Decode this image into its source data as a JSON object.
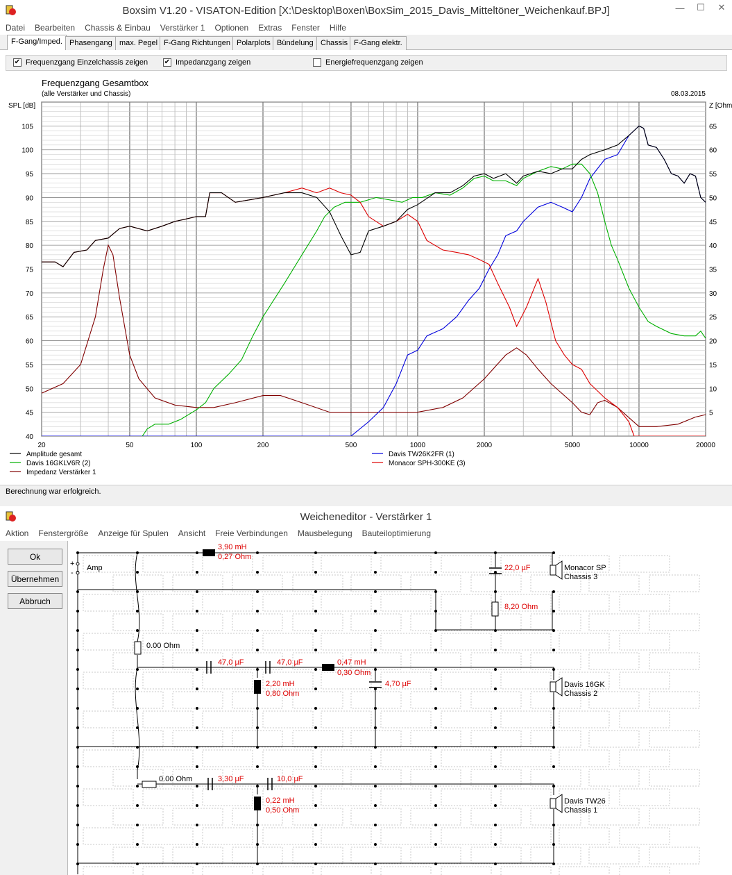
{
  "main_window": {
    "title": "Boxsim V1.20 - VISATON-Edition [X:\\Desktop\\Boxen\\BoxSim_2015_Davis_Mitteltöner_Weichenkauf.BPJ]",
    "menu": [
      "Datei",
      "Bearbeiten",
      "Chassis & Einbau",
      "Verstärker 1",
      "Optionen",
      "Extras",
      "Fenster",
      "Hilfe"
    ],
    "tabs": [
      "F-Gang/Imped.",
      "Phasengang",
      "max. Pegel",
      "F-Gang Richtungen",
      "Polarplots",
      "Bündelung",
      "Chassis",
      "F-Gang elektr."
    ],
    "active_tab": 0,
    "options": [
      {
        "label": "Frequenzgang Einzelchassis zeigen",
        "checked": true
      },
      {
        "label": "Impedanzgang zeigen",
        "checked": true
      },
      {
        "label": "Energiefrequenzgang zeigen",
        "checked": false
      }
    ],
    "status": "Berechnung war erfolgreich."
  },
  "chart_data": {
    "type": "line",
    "title": "Frequenzgang Gesamtbox",
    "subtitle": "(alle Verstärker und Chassis)",
    "date": "08.03.2015",
    "ylabel": "SPL [dB]",
    "ylabel_right": "Z [Ohm]",
    "xscale": "log",
    "xlim": [
      20,
      20000
    ],
    "ylim": [
      40,
      110
    ],
    "ylim_right": [
      0,
      70
    ],
    "x_ticks": [
      "20",
      "50",
      "100",
      "200",
      "500",
      "1000",
      "2000",
      "5000",
      "10000",
      "20000"
    ],
    "x_tick_values": [
      20,
      50,
      100,
      200,
      500,
      1000,
      2000,
      5000,
      10000,
      20000
    ],
    "y_ticks": [
      40,
      45,
      50,
      55,
      60,
      65,
      70,
      75,
      80,
      85,
      90,
      95,
      100,
      105
    ],
    "y_ticks_right": [
      "",
      "5",
      "10",
      "15",
      "20",
      "25",
      "30",
      "35",
      "40",
      "45",
      "50",
      "55",
      "60",
      "65"
    ],
    "grid": true,
    "legend": [
      {
        "name": "Amplitude gesamt",
        "color": "#000000",
        "column": 0
      },
      {
        "name": "Davis 16GKLV6R (2)",
        "color": "#00b000",
        "column": 0
      },
      {
        "name": "Impedanz Verstärker 1",
        "color": "#800000",
        "column": 0
      },
      {
        "name": "Davis TW26K2FR  (1)",
        "color": "#0000dd",
        "column": 1
      },
      {
        "name": "Monacor SPH-300KE (3)",
        "color": "#dd0000",
        "column": 1
      }
    ],
    "series": [
      {
        "name": "Amplitude gesamt",
        "color": "#000000",
        "axis": "left",
        "points": [
          [
            20,
            76.5
          ],
          [
            23,
            76.5
          ],
          [
            25,
            75.5
          ],
          [
            28,
            78.5
          ],
          [
            32,
            79
          ],
          [
            35,
            81
          ],
          [
            40,
            81.5
          ],
          [
            45,
            83.5
          ],
          [
            50,
            84
          ],
          [
            60,
            83
          ],
          [
            70,
            84
          ],
          [
            80,
            85
          ],
          [
            90,
            85.5
          ],
          [
            100,
            86
          ],
          [
            110,
            86
          ],
          [
            115,
            91
          ],
          [
            130,
            91
          ],
          [
            150,
            89
          ],
          [
            200,
            90
          ],
          [
            250,
            91
          ],
          [
            300,
            91
          ],
          [
            350,
            90
          ],
          [
            400,
            87
          ],
          [
            450,
            82
          ],
          [
            500,
            78
          ],
          [
            550,
            78.5
          ],
          [
            600,
            83
          ],
          [
            700,
            84
          ],
          [
            800,
            85
          ],
          [
            900,
            87.5
          ],
          [
            1000,
            88.5
          ],
          [
            1200,
            91
          ],
          [
            1400,
            91
          ],
          [
            1600,
            92.5
          ],
          [
            1800,
            94.5
          ],
          [
            2000,
            95
          ],
          [
            2200,
            94
          ],
          [
            2500,
            95
          ],
          [
            2800,
            93
          ],
          [
            3000,
            94.5
          ],
          [
            3500,
            95.5
          ],
          [
            4000,
            95
          ],
          [
            4500,
            96
          ],
          [
            5000,
            96
          ],
          [
            5500,
            98
          ],
          [
            6000,
            99
          ],
          [
            7000,
            100
          ],
          [
            8000,
            101
          ],
          [
            9000,
            103
          ],
          [
            10000,
            105
          ],
          [
            10500,
            104.5
          ],
          [
            11000,
            101
          ],
          [
            12000,
            100.5
          ],
          [
            13000,
            98
          ],
          [
            14000,
            95
          ],
          [
            15000,
            94.5
          ],
          [
            16000,
            93
          ],
          [
            17000,
            95
          ],
          [
            18000,
            94.5
          ],
          [
            19000,
            90
          ],
          [
            20000,
            89
          ]
        ]
      },
      {
        "name": "Davis TW26K2FR  (1)",
        "color": "#0000dd",
        "axis": "left",
        "points": [
          [
            20,
            40
          ],
          [
            500,
            40
          ],
          [
            600,
            43
          ],
          [
            700,
            46
          ],
          [
            800,
            51
          ],
          [
            900,
            57
          ],
          [
            1000,
            58
          ],
          [
            1100,
            61
          ],
          [
            1300,
            62.5
          ],
          [
            1500,
            65
          ],
          [
            1700,
            68.5
          ],
          [
            1900,
            71
          ],
          [
            2100,
            75
          ],
          [
            2300,
            78
          ],
          [
            2500,
            82
          ],
          [
            2800,
            83
          ],
          [
            3000,
            85
          ],
          [
            3500,
            88
          ],
          [
            4000,
            89
          ],
          [
            4500,
            88
          ],
          [
            5000,
            87
          ],
          [
            5500,
            90
          ],
          [
            6000,
            94
          ],
          [
            7000,
            98
          ],
          [
            8000,
            99
          ],
          [
            9000,
            103
          ],
          [
            10000,
            105
          ],
          [
            10500,
            104.5
          ],
          [
            11000,
            101
          ],
          [
            12000,
            100.5
          ],
          [
            13000,
            98
          ],
          [
            14000,
            95
          ],
          [
            15000,
            94.5
          ],
          [
            16000,
            93
          ],
          [
            17000,
            95
          ],
          [
            18000,
            94.5
          ],
          [
            19000,
            90
          ],
          [
            20000,
            89
          ]
        ]
      },
      {
        "name": "Davis 16GKLV6R (2)",
        "color": "#00b000",
        "axis": "left",
        "points": [
          [
            57,
            40
          ],
          [
            60,
            41.5
          ],
          [
            65,
            42.5
          ],
          [
            75,
            42.5
          ],
          [
            85,
            43.5
          ],
          [
            100,
            45.5
          ],
          [
            110,
            47
          ],
          [
            120,
            50
          ],
          [
            140,
            53
          ],
          [
            160,
            56
          ],
          [
            180,
            61
          ],
          [
            200,
            65
          ],
          [
            250,
            72
          ],
          [
            300,
            78
          ],
          [
            350,
            83
          ],
          [
            380,
            86
          ],
          [
            420,
            88
          ],
          [
            470,
            89
          ],
          [
            550,
            89
          ],
          [
            650,
            90
          ],
          [
            750,
            89.5
          ],
          [
            850,
            89
          ],
          [
            950,
            90
          ],
          [
            1050,
            90
          ],
          [
            1200,
            91
          ],
          [
            1400,
            90.5
          ],
          [
            1600,
            92
          ],
          [
            1800,
            94
          ],
          [
            2000,
            94.5
          ],
          [
            2200,
            93.5
          ],
          [
            2500,
            93.5
          ],
          [
            2800,
            92.5
          ],
          [
            3000,
            94
          ],
          [
            3500,
            95.5
          ],
          [
            4000,
            96.5
          ],
          [
            4500,
            96
          ],
          [
            5000,
            97
          ],
          [
            5500,
            97
          ],
          [
            6000,
            95
          ],
          [
            6500,
            91
          ],
          [
            7000,
            85
          ],
          [
            7500,
            80
          ],
          [
            8000,
            77
          ],
          [
            9000,
            71
          ],
          [
            10000,
            67
          ],
          [
            11000,
            64
          ],
          [
            12000,
            63
          ],
          [
            14000,
            61.5
          ],
          [
            16000,
            61
          ],
          [
            18000,
            61
          ],
          [
            19000,
            62
          ],
          [
            20000,
            60.5
          ]
        ]
      },
      {
        "name": "Monacor SPH-300KE (3)",
        "color": "#dd0000",
        "axis": "left",
        "points": [
          [
            20,
            76.5
          ],
          [
            23,
            76.5
          ],
          [
            25,
            75.5
          ],
          [
            28,
            78.5
          ],
          [
            32,
            79
          ],
          [
            35,
            81
          ],
          [
            40,
            81.5
          ],
          [
            45,
            83.5
          ],
          [
            50,
            84
          ],
          [
            60,
            83
          ],
          [
            70,
            84
          ],
          [
            80,
            85
          ],
          [
            90,
            85.5
          ],
          [
            100,
            86
          ],
          [
            110,
            86
          ],
          [
            115,
            91
          ],
          [
            130,
            91
          ],
          [
            150,
            89
          ],
          [
            200,
            90
          ],
          [
            250,
            91
          ],
          [
            300,
            92
          ],
          [
            350,
            91
          ],
          [
            400,
            92
          ],
          [
            450,
            91
          ],
          [
            500,
            90.5
          ],
          [
            550,
            89
          ],
          [
            600,
            86
          ],
          [
            700,
            84
          ],
          [
            800,
            85
          ],
          [
            900,
            86.5
          ],
          [
            1000,
            85
          ],
          [
            1100,
            81
          ],
          [
            1300,
            79
          ],
          [
            1500,
            78.5
          ],
          [
            1700,
            78
          ],
          [
            1900,
            77
          ],
          [
            2100,
            76
          ],
          [
            2300,
            72
          ],
          [
            2600,
            67
          ],
          [
            2800,
            63
          ],
          [
            3100,
            67
          ],
          [
            3500,
            73
          ],
          [
            3800,
            68
          ],
          [
            4200,
            60
          ],
          [
            4600,
            57
          ],
          [
            5000,
            55
          ],
          [
            5500,
            54
          ],
          [
            6000,
            51
          ],
          [
            7000,
            48
          ],
          [
            8000,
            46
          ],
          [
            9000,
            43
          ],
          [
            9500,
            40
          ],
          [
            20000,
            40
          ]
        ]
      },
      {
        "name": "Impedanz Verstärker 1",
        "color": "#800000",
        "axis": "right",
        "points": [
          [
            20,
            9
          ],
          [
            25,
            11
          ],
          [
            30,
            15
          ],
          [
            35,
            25
          ],
          [
            38,
            35
          ],
          [
            40,
            40
          ],
          [
            42,
            38
          ],
          [
            45,
            29
          ],
          [
            50,
            17
          ],
          [
            55,
            12
          ],
          [
            65,
            8
          ],
          [
            80,
            6.5
          ],
          [
            100,
            6
          ],
          [
            120,
            6
          ],
          [
            150,
            7
          ],
          [
            200,
            8.5
          ],
          [
            240,
            8.5
          ],
          [
            300,
            7
          ],
          [
            400,
            5
          ],
          [
            500,
            5
          ],
          [
            600,
            5
          ],
          [
            800,
            5
          ],
          [
            1000,
            5
          ],
          [
            1300,
            6
          ],
          [
            1600,
            8
          ],
          [
            2000,
            12
          ],
          [
            2500,
            17
          ],
          [
            2800,
            18.5
          ],
          [
            3100,
            17
          ],
          [
            3500,
            14
          ],
          [
            4000,
            11
          ],
          [
            5000,
            7
          ],
          [
            5500,
            5
          ],
          [
            6000,
            4.5
          ],
          [
            6500,
            7
          ],
          [
            7000,
            7.5
          ],
          [
            8000,
            6
          ],
          [
            10000,
            2
          ],
          [
            12000,
            2
          ],
          [
            15000,
            2.5
          ],
          [
            18000,
            4
          ],
          [
            20000,
            4.5
          ]
        ]
      }
    ]
  },
  "crossover_window": {
    "title": "Weicheneditor - Verstärker 1",
    "menu": [
      "Aktion",
      "Fenstergröße",
      "Anzeige für Spulen",
      "Ansicht",
      "Freie Verbindungen",
      "Mausbelegung",
      "Bauteiloptimierung"
    ],
    "buttons": [
      "Ok",
      "Übernehmen",
      "Abbruch"
    ],
    "amp_label": "Amp",
    "plus": "+",
    "minus": "-",
    "components": {
      "l1": "3,90 mH",
      "l1r": "0,27 Ohm",
      "c1": "22,0 µF",
      "r1": "8,20 Ohm",
      "chassis3a": "Monacor SP",
      "chassis3b": "Chassis 3",
      "r_mid": "0.00 Ohm",
      "c2": "47,0 µF",
      "c3": "47,0 µF",
      "l2": "0,47 mH",
      "l2r": "0,30 Ohm",
      "l3": "2,20 mH",
      "l3r": "0,80 Ohm",
      "c4": "4,70 µF",
      "chassis2a": "Davis 16GK",
      "chassis2b": "Chassis 2",
      "r_tw": "0.00 Ohm",
      "c5": "3,30 µF",
      "c6": "10,0 µF",
      "l4": "0,22 mH",
      "l4r": "0,50 Ohm",
      "chassis1a": "Davis TW26",
      "chassis1b": "Chassis 1"
    }
  }
}
